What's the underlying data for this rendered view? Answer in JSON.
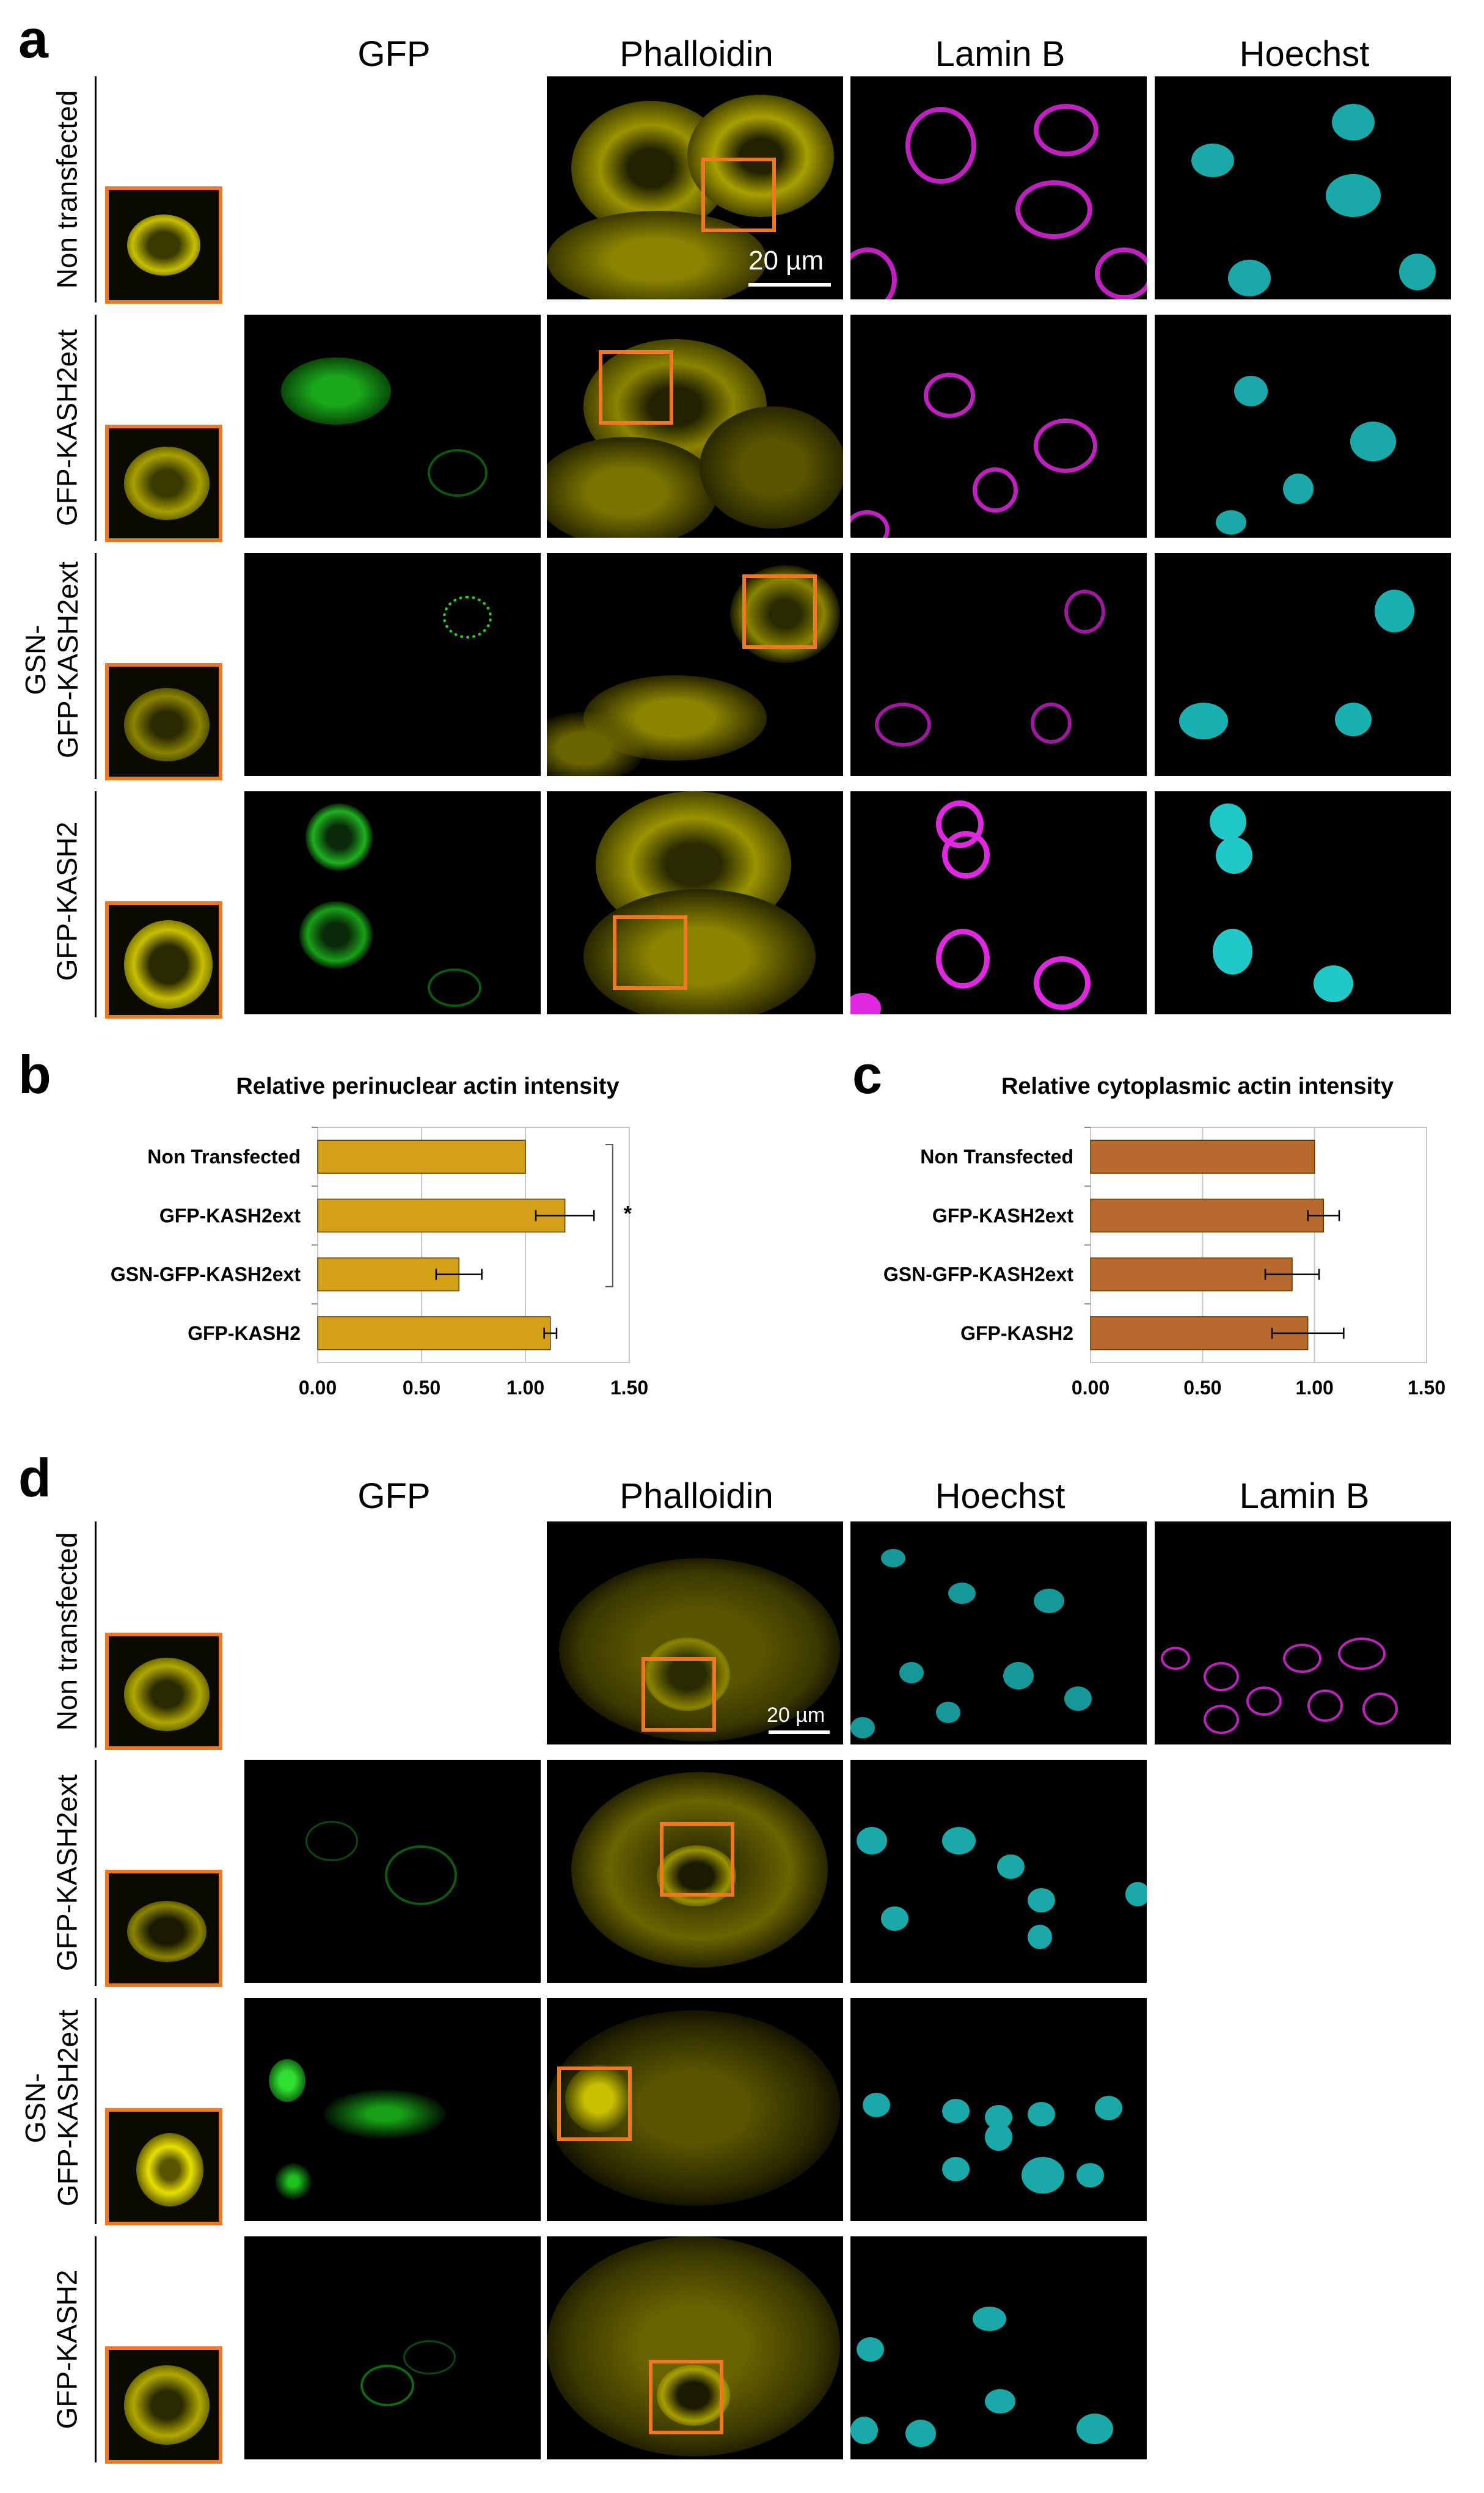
{
  "panel_a": {
    "letter": "a",
    "columns": [
      "GFP",
      "Phalloidin",
      "Lamin B",
      "Hoechst"
    ],
    "rows": [
      "Non transfected",
      "GFP-KASH2ext",
      "GSN-\nGFP-KASH2ext",
      "GFP-KASH2"
    ],
    "scale_bar": "20 µm"
  },
  "panel_d": {
    "letter": "d",
    "columns": [
      "GFP",
      "Phalloidin",
      "Hoechst",
      "Lamin B"
    ],
    "rows": [
      "Non transfected",
      "GFP-KASH2ext",
      "GSN-\nGFP-KASH2ext",
      "GFP-KASH2"
    ],
    "scale_bar": "20 µm"
  },
  "colors": {
    "inset_border": "#f07820",
    "phalloidin": "#e8e000",
    "gfp": "#1ec81e",
    "laminb": "#d020d0",
    "hoechst": "#20c8c8",
    "bar_b": "#d4a017",
    "bar_c": "#b8692e"
  },
  "chart_data": [
    {
      "panel": "b",
      "type": "bar",
      "orientation": "horizontal",
      "title": "Relative perinuclear actin intensity",
      "categories": [
        "Non Transfected",
        "GFP-KASH2ext",
        "GSN-GFP-KASH2ext",
        "GFP-KASH2"
      ],
      "values": [
        1.0,
        1.19,
        0.68,
        1.12
      ],
      "errors": [
        0.0,
        0.14,
        0.11,
        0.03
      ],
      "xlim": [
        0,
        1.5
      ],
      "xticks": [
        "0.00",
        "0.50",
        "1.00",
        "1.50"
      ],
      "significance": "*",
      "grid": true
    },
    {
      "panel": "c",
      "type": "bar",
      "orientation": "horizontal",
      "title": "Relative cytoplasmic actin intensity",
      "categories": [
        "Non Transfected",
        "GFP-KASH2ext",
        "GSN-GFP-KASH2ext",
        "GFP-KASH2"
      ],
      "values": [
        1.0,
        1.04,
        0.9,
        0.97
      ],
      "errors": [
        0.0,
        0.07,
        0.12,
        0.16
      ],
      "xlim": [
        0,
        1.5
      ],
      "xticks": [
        "0.00",
        "0.50",
        "1.00",
        "1.50"
      ],
      "grid": true
    }
  ]
}
